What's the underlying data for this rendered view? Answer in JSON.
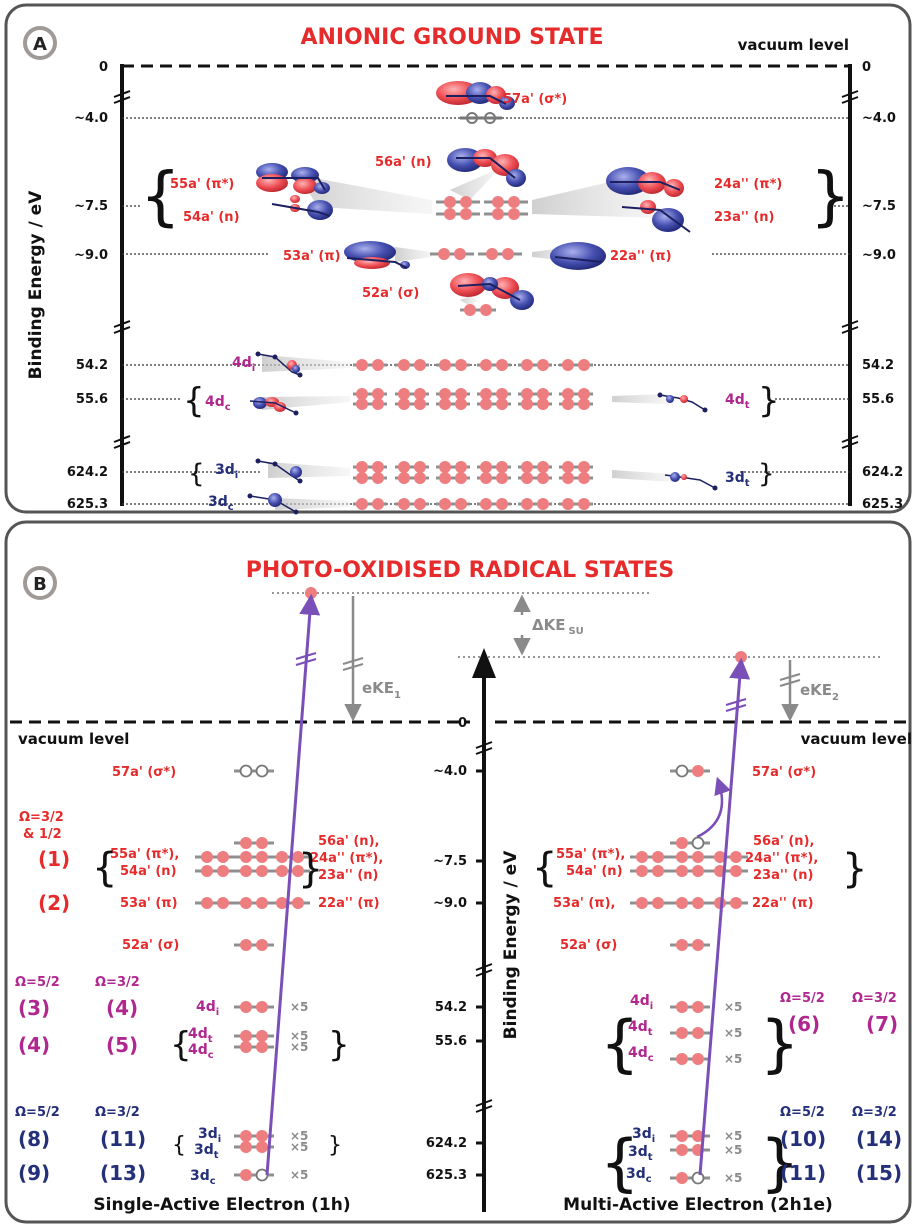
{
  "colors": {
    "red": "#e52b2b",
    "magenta": "#b0288f",
    "navy": "#25307a",
    "gray": "#8a8a8a",
    "orb_red": "#ef4f55",
    "orb_blue": "#3f4aa8",
    "arrow": "#7a4fb8",
    "dot": "#ee7d80",
    "panel_border": "#555555"
  },
  "panel_a": {
    "letter": "A",
    "title": "ANIONIC GROUND STATE",
    "vacuum": "vacuum level",
    "ylabel": "Binding Energy / eV",
    "ticks": {
      "zero": "0",
      "e4": "~4.0",
      "e75": "~7.5",
      "e9": "~9.0",
      "e542": "54.2",
      "e556": "55.6",
      "e6242": "624.2",
      "e6253": "625.3"
    },
    "labels": {
      "o57": "57a' (σ*)",
      "o56": "56a' (n)",
      "o55": "55a' (π*)",
      "o54": "54a' (n)",
      "o53": "53a' (π)",
      "o52": "52a' (σ)",
      "o24": "24a'' (π*)",
      "o23": "23a'' (n)",
      "o22": "22a'' (π)",
      "d4i": "4d",
      "d4i_sub": "i",
      "d4c": "4d",
      "d4c_sub": "c",
      "d4t": "4d",
      "d4t_sub": "t",
      "d3i": "3d",
      "d3i_sub": "i",
      "d3c": "3d",
      "d3c_sub": "c",
      "d3t": "3d",
      "d3t_sub": "t"
    }
  },
  "panel_b": {
    "letter": "B",
    "title": "PHOTO-OXIDISED RADICAL STATES",
    "vacuum_left": "vacuum level",
    "vacuum_right": "vacuum level",
    "ylabel": "Binding Energy / eV",
    "ticks": {
      "zero": "0",
      "e4": "~4.0",
      "e75": "~7.5",
      "e9": "~9.0",
      "e542": "54.2",
      "e556": "55.6",
      "e6242": "624.2",
      "e6253": "625.3"
    },
    "eke1": "eKE",
    "eke1_sub": "1",
    "eke2": "eKE",
    "eke2_sub": "2",
    "dke": "ΔKE",
    "dke_sub": "SU",
    "times5": "×5",
    "left": {
      "o57": "57a' (σ*)",
      "omega1": "Ω=3/2",
      "omega1b": "& 1/2",
      "s1": "(1)",
      "s2": "(2)",
      "o55": "55a' (π*),",
      "o54": "54a' (n)",
      "o56": "56a' (n),",
      "o24": "24a'' (π*),",
      "o23": "23a'' (n)",
      "o53": "53a' (π)",
      "o22": "22a'' (π)",
      "o52": "52a' (σ)",
      "om52": "Ω=5/2",
      "om32": "Ω=3/2",
      "s3": "(3)",
      "s4a": "(4)",
      "s4b": "(4)",
      "s5": "(5)",
      "om52b": "Ω=5/2",
      "om32b": "Ω=3/2",
      "s8": "(8)",
      "s11": "(11)",
      "s9": "(9)",
      "s13": "(13)",
      "d4i": "4d",
      "d4i_sub": "i",
      "d4t": "4d",
      "d4t_sub": "t",
      "d4c": "4d",
      "d4c_sub": "c",
      "d3i": "3d",
      "d3i_sub": "i",
      "d3t": "3d",
      "d3t_sub": "t",
      "d3c": "3d",
      "d3c_sub": "c",
      "footer": "Single-Active Electron (1h)"
    },
    "right": {
      "o57": "57a' (σ*)",
      "o55": "55a' (π*),",
      "o54": "54a' (n)",
      "o56": "56a' (n),",
      "o24": "24a'' (π*),",
      "o23": "23a'' (n)",
      "o53": "53a' (π),",
      "o22": "22a'' (π)",
      "o52": "52a' (σ)",
      "om52": "Ω=5/2",
      "om32": "Ω=3/2",
      "s6": "(6)",
      "s7": "(7)",
      "om52b": "Ω=5/2",
      "om32b": "Ω=3/2",
      "s10": "(10)",
      "s14": "(14)",
      "s11": "(11)",
      "s15": "(15)",
      "d4i": "4d",
      "d4i_sub": "i",
      "d4t": "4d",
      "d4t_sub": "t",
      "d4c": "4d",
      "d4c_sub": "c",
      "d3i": "3d",
      "d3i_sub": "i",
      "d3t": "3d",
      "d3t_sub": "t",
      "d3c": "3d",
      "d3c_sub": "c",
      "footer": "Multi-Active Electron (2h1e)"
    }
  }
}
